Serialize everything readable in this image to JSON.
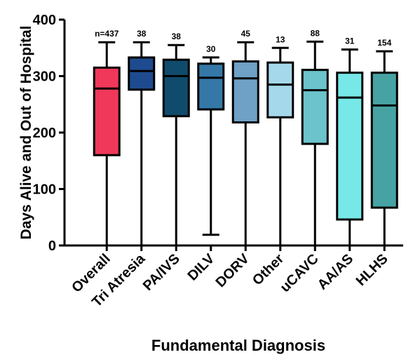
{
  "chart_data": {
    "type": "box",
    "x_label": "Fundamental Diagnosis",
    "y_label": "Days Alive and Out of Hospital",
    "categories": [
      "Overall",
      "Tri Atresia",
      "PA/IVS",
      "DILV",
      "DORV",
      "Other",
      "uCAVC",
      "AA/AS",
      "HLHS"
    ],
    "min": [
      0,
      0,
      0,
      19,
      0,
      0,
      0,
      0,
      0
    ],
    "q1": [
      160,
      276,
      229,
      241,
      218,
      227,
      180,
      46,
      67
    ],
    "median": [
      278,
      309,
      300,
      297,
      296,
      285,
      275,
      262,
      248
    ],
    "q3": [
      315,
      333,
      329,
      322,
      326,
      324,
      311,
      306,
      306
    ],
    "max": [
      360,
      360,
      355,
      333,
      360,
      350,
      361,
      347,
      344
    ],
    "n_labels": [
      "n=437",
      "38",
      "38",
      "30",
      "45",
      "13",
      "88",
      "31",
      "154"
    ],
    "colors": [
      "#f0385a",
      "#1e4b8f",
      "#104b6c",
      "#3578a8",
      "#6fa0c6",
      "#a5d8ea",
      "#6cc3cb",
      "#77e8e8",
      "#47a3a3"
    ],
    "ylim": [
      0,
      400
    ],
    "yticks": [
      0,
      100,
      200,
      300,
      400
    ]
  }
}
